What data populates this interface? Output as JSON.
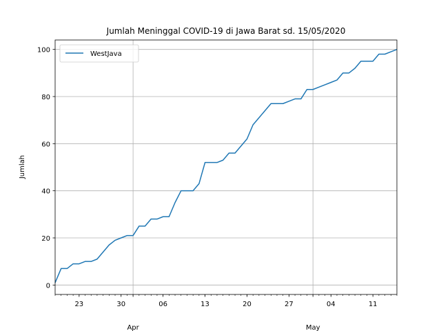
{
  "chart_data": {
    "type": "line",
    "title": "Jumlah Meninggal COVID-19 di Jawa Barat sd. 15/05/2020",
    "xlabel": "",
    "ylabel": "Jumlah",
    "xlim": [
      "2020-03-19",
      "2020-05-15"
    ],
    "ylim": [
      -4,
      104
    ],
    "grid": true,
    "legend": "upper-left",
    "minor_tick_labels": [
      "23",
      "30",
      "06",
      "13",
      "20",
      "27",
      "04",
      "11"
    ],
    "minor_tick_dates": [
      "2020-03-23",
      "2020-03-30",
      "2020-04-06",
      "2020-04-13",
      "2020-04-20",
      "2020-04-27",
      "2020-05-04",
      "2020-05-11"
    ],
    "month_labels": [
      "Apr",
      "May"
    ],
    "month_dates": [
      "2020-04-01",
      "2020-05-01"
    ],
    "y_ticks": [
      0,
      20,
      40,
      60,
      80,
      100
    ],
    "series": [
      {
        "name": "WestJava",
        "color": "#1f77b4",
        "x": [
          "2020-03-19",
          "2020-03-20",
          "2020-03-21",
          "2020-03-22",
          "2020-03-23",
          "2020-03-24",
          "2020-03-25",
          "2020-03-26",
          "2020-03-27",
          "2020-03-28",
          "2020-03-29",
          "2020-03-30",
          "2020-03-31",
          "2020-04-01",
          "2020-04-02",
          "2020-04-03",
          "2020-04-04",
          "2020-04-05",
          "2020-04-06",
          "2020-04-07",
          "2020-04-08",
          "2020-04-09",
          "2020-04-10",
          "2020-04-11",
          "2020-04-12",
          "2020-04-13",
          "2020-04-14",
          "2020-04-15",
          "2020-04-16",
          "2020-04-17",
          "2020-04-18",
          "2020-04-19",
          "2020-04-20",
          "2020-04-21",
          "2020-04-22",
          "2020-04-23",
          "2020-04-24",
          "2020-04-25",
          "2020-04-26",
          "2020-04-27",
          "2020-04-28",
          "2020-04-29",
          "2020-04-30",
          "2020-05-01",
          "2020-05-02",
          "2020-05-03",
          "2020-05-04",
          "2020-05-05",
          "2020-05-06",
          "2020-05-07",
          "2020-05-08",
          "2020-05-09",
          "2020-05-10",
          "2020-05-11",
          "2020-05-12",
          "2020-05-13",
          "2020-05-14",
          "2020-05-15"
        ],
        "values": [
          1,
          7,
          7,
          9,
          9,
          10,
          10,
          11,
          14,
          17,
          19,
          20,
          21,
          21,
          25,
          25,
          28,
          28,
          29,
          29,
          35,
          40,
          40,
          40,
          43,
          52,
          52,
          52,
          53,
          56,
          56,
          59,
          62,
          68,
          71,
          74,
          77,
          77,
          77,
          78,
          79,
          79,
          83,
          83,
          84,
          85,
          86,
          87,
          90,
          90,
          92,
          95,
          95,
          95,
          98,
          98,
          99,
          100
        ]
      }
    ]
  }
}
